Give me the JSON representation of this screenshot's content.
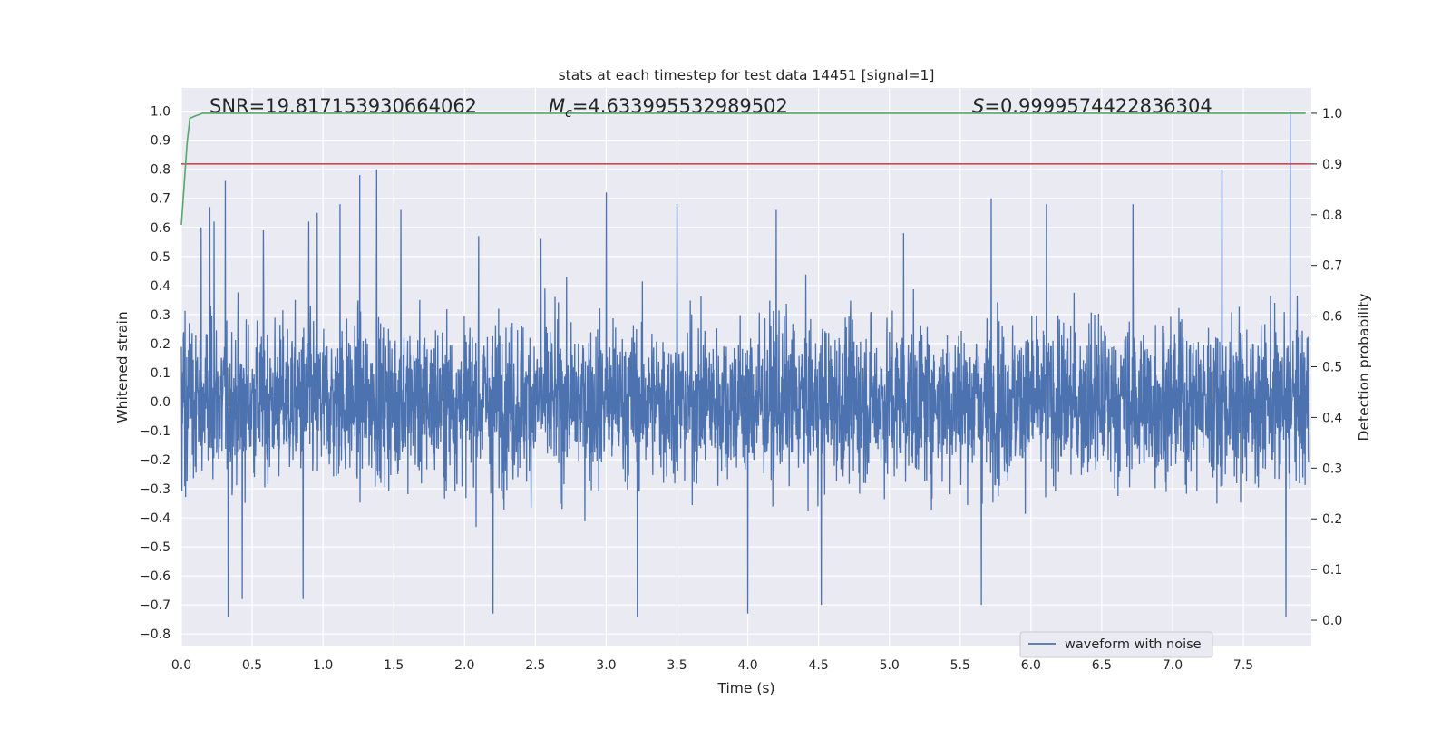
{
  "chart_data": {
    "type": "line",
    "title": "stats at each timestep for test data 14451 [signal=1]",
    "xlabel": "Time (s)",
    "ylabel": "Whitened strain",
    "y2label": "Detection probability",
    "xlim": [
      0.0,
      7.98
    ],
    "ylim": [
      -0.84,
      1.08
    ],
    "y2lim": [
      -0.05,
      1.05
    ],
    "xticks": [
      "0.0",
      "0.5",
      "1.0",
      "1.5",
      "2.0",
      "2.5",
      "3.0",
      "3.5",
      "4.0",
      "4.5",
      "5.0",
      "5.5",
      "6.0",
      "6.5",
      "7.0",
      "7.5"
    ],
    "yticks": [
      "1.0",
      "0.9",
      "0.8",
      "0.7",
      "0.6",
      "0.5",
      "0.4",
      "0.3",
      "0.2",
      "0.1",
      "0.0",
      "−0.1",
      "−0.2",
      "−0.3",
      "−0.4",
      "−0.5",
      "−0.6",
      "−0.7",
      "−0.8"
    ],
    "y2ticks": [
      "1.0",
      "0.9",
      "0.8",
      "0.7",
      "0.6",
      "0.5",
      "0.4",
      "0.3",
      "0.2",
      "0.1",
      "0.0"
    ],
    "grid": true,
    "legend": {
      "position": "bottom-right",
      "entries": [
        "waveform with noise"
      ]
    },
    "annotations": {
      "snr_label": "SNR",
      "snr_value": "=19.817153930664062",
      "mc_symbol": "M",
      "mc_subscript": "c",
      "mc_value": "=4.633995532989502",
      "s_symbol": "S",
      "s_value": "=0.9999574422836304"
    },
    "series": [
      {
        "name": "waveform with noise",
        "axis": "left",
        "color": "#4c72b0",
        "description_peaks": {
          "typical_envelope": [
            -0.35,
            0.35
          ],
          "tall_positive_spikes_x": [
            0.14,
            0.2,
            0.23,
            0.31,
            0.58,
            0.9,
            0.96,
            1.12,
            1.26,
            1.38,
            1.55,
            2.1,
            2.54,
            3.0,
            3.5,
            4.2,
            5.1,
            5.72,
            6.11,
            6.72,
            7.35,
            7.83
          ],
          "tall_positive_spikes_y": [
            0.6,
            0.67,
            0.62,
            0.76,
            0.59,
            0.62,
            0.65,
            0.68,
            0.78,
            0.8,
            0.66,
            0.57,
            0.56,
            0.72,
            0.68,
            0.66,
            0.58,
            0.7,
            0.68,
            0.68,
            0.8,
            1.0
          ],
          "deep_negative_spikes_x": [
            0.33,
            0.43,
            0.86,
            2.2,
            3.22,
            4.0,
            4.52,
            5.65,
            7.8
          ],
          "deep_negative_spikes_y": [
            -0.74,
            -0.68,
            -0.68,
            -0.73,
            -0.74,
            -0.73,
            -0.7,
            -0.7,
            -0.74
          ]
        }
      },
      {
        "name": "",
        "axis": "right",
        "color": "#55a868",
        "x": [
          0.0,
          0.02,
          0.04,
          0.06,
          0.1,
          0.15,
          7.94
        ],
        "y": [
          0.78,
          0.86,
          0.94,
          0.99,
          0.995,
          1.0,
          1.0
        ]
      },
      {
        "name": "",
        "axis": "right",
        "color": "#c44e52",
        "x": [
          0.0,
          7.98
        ],
        "y": [
          0.9,
          0.9
        ]
      }
    ]
  }
}
